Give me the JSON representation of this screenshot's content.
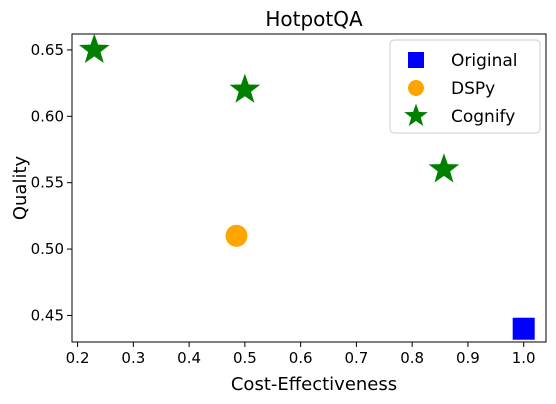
{
  "chart_data": {
    "type": "scatter",
    "title": "HotpotQA",
    "xlabel": "Cost-Effectiveness",
    "ylabel": "Quality",
    "xlim": [
      0.19,
      1.04
    ],
    "ylim": [
      0.43,
      0.662
    ],
    "xticks": [
      0.2,
      0.3,
      0.4,
      0.5,
      0.6,
      0.7,
      0.8,
      0.9,
      1.0
    ],
    "xtick_labels": [
      "0.2",
      "0.3",
      "0.4",
      "0.5",
      "0.6",
      "0.7",
      "0.8",
      "0.9",
      "1.0"
    ],
    "yticks": [
      0.45,
      0.5,
      0.55,
      0.6,
      0.65
    ],
    "ytick_labels": [
      "0.45",
      "0.50",
      "0.55",
      "0.60",
      "0.65"
    ],
    "grid": false,
    "legend_position": "top-right",
    "series": [
      {
        "name": "Original",
        "marker": "square",
        "color": "#0000ff",
        "points": [
          {
            "x": 1.0,
            "y": 0.44
          }
        ]
      },
      {
        "name": "DSPy",
        "marker": "circle",
        "color": "#ffa500",
        "points": [
          {
            "x": 0.485,
            "y": 0.51
          }
        ]
      },
      {
        "name": "Cognify",
        "marker": "star",
        "color": "#008000",
        "points": [
          {
            "x": 0.23,
            "y": 0.65
          },
          {
            "x": 0.5,
            "y": 0.62
          },
          {
            "x": 0.857,
            "y": 0.56
          }
        ]
      }
    ]
  }
}
